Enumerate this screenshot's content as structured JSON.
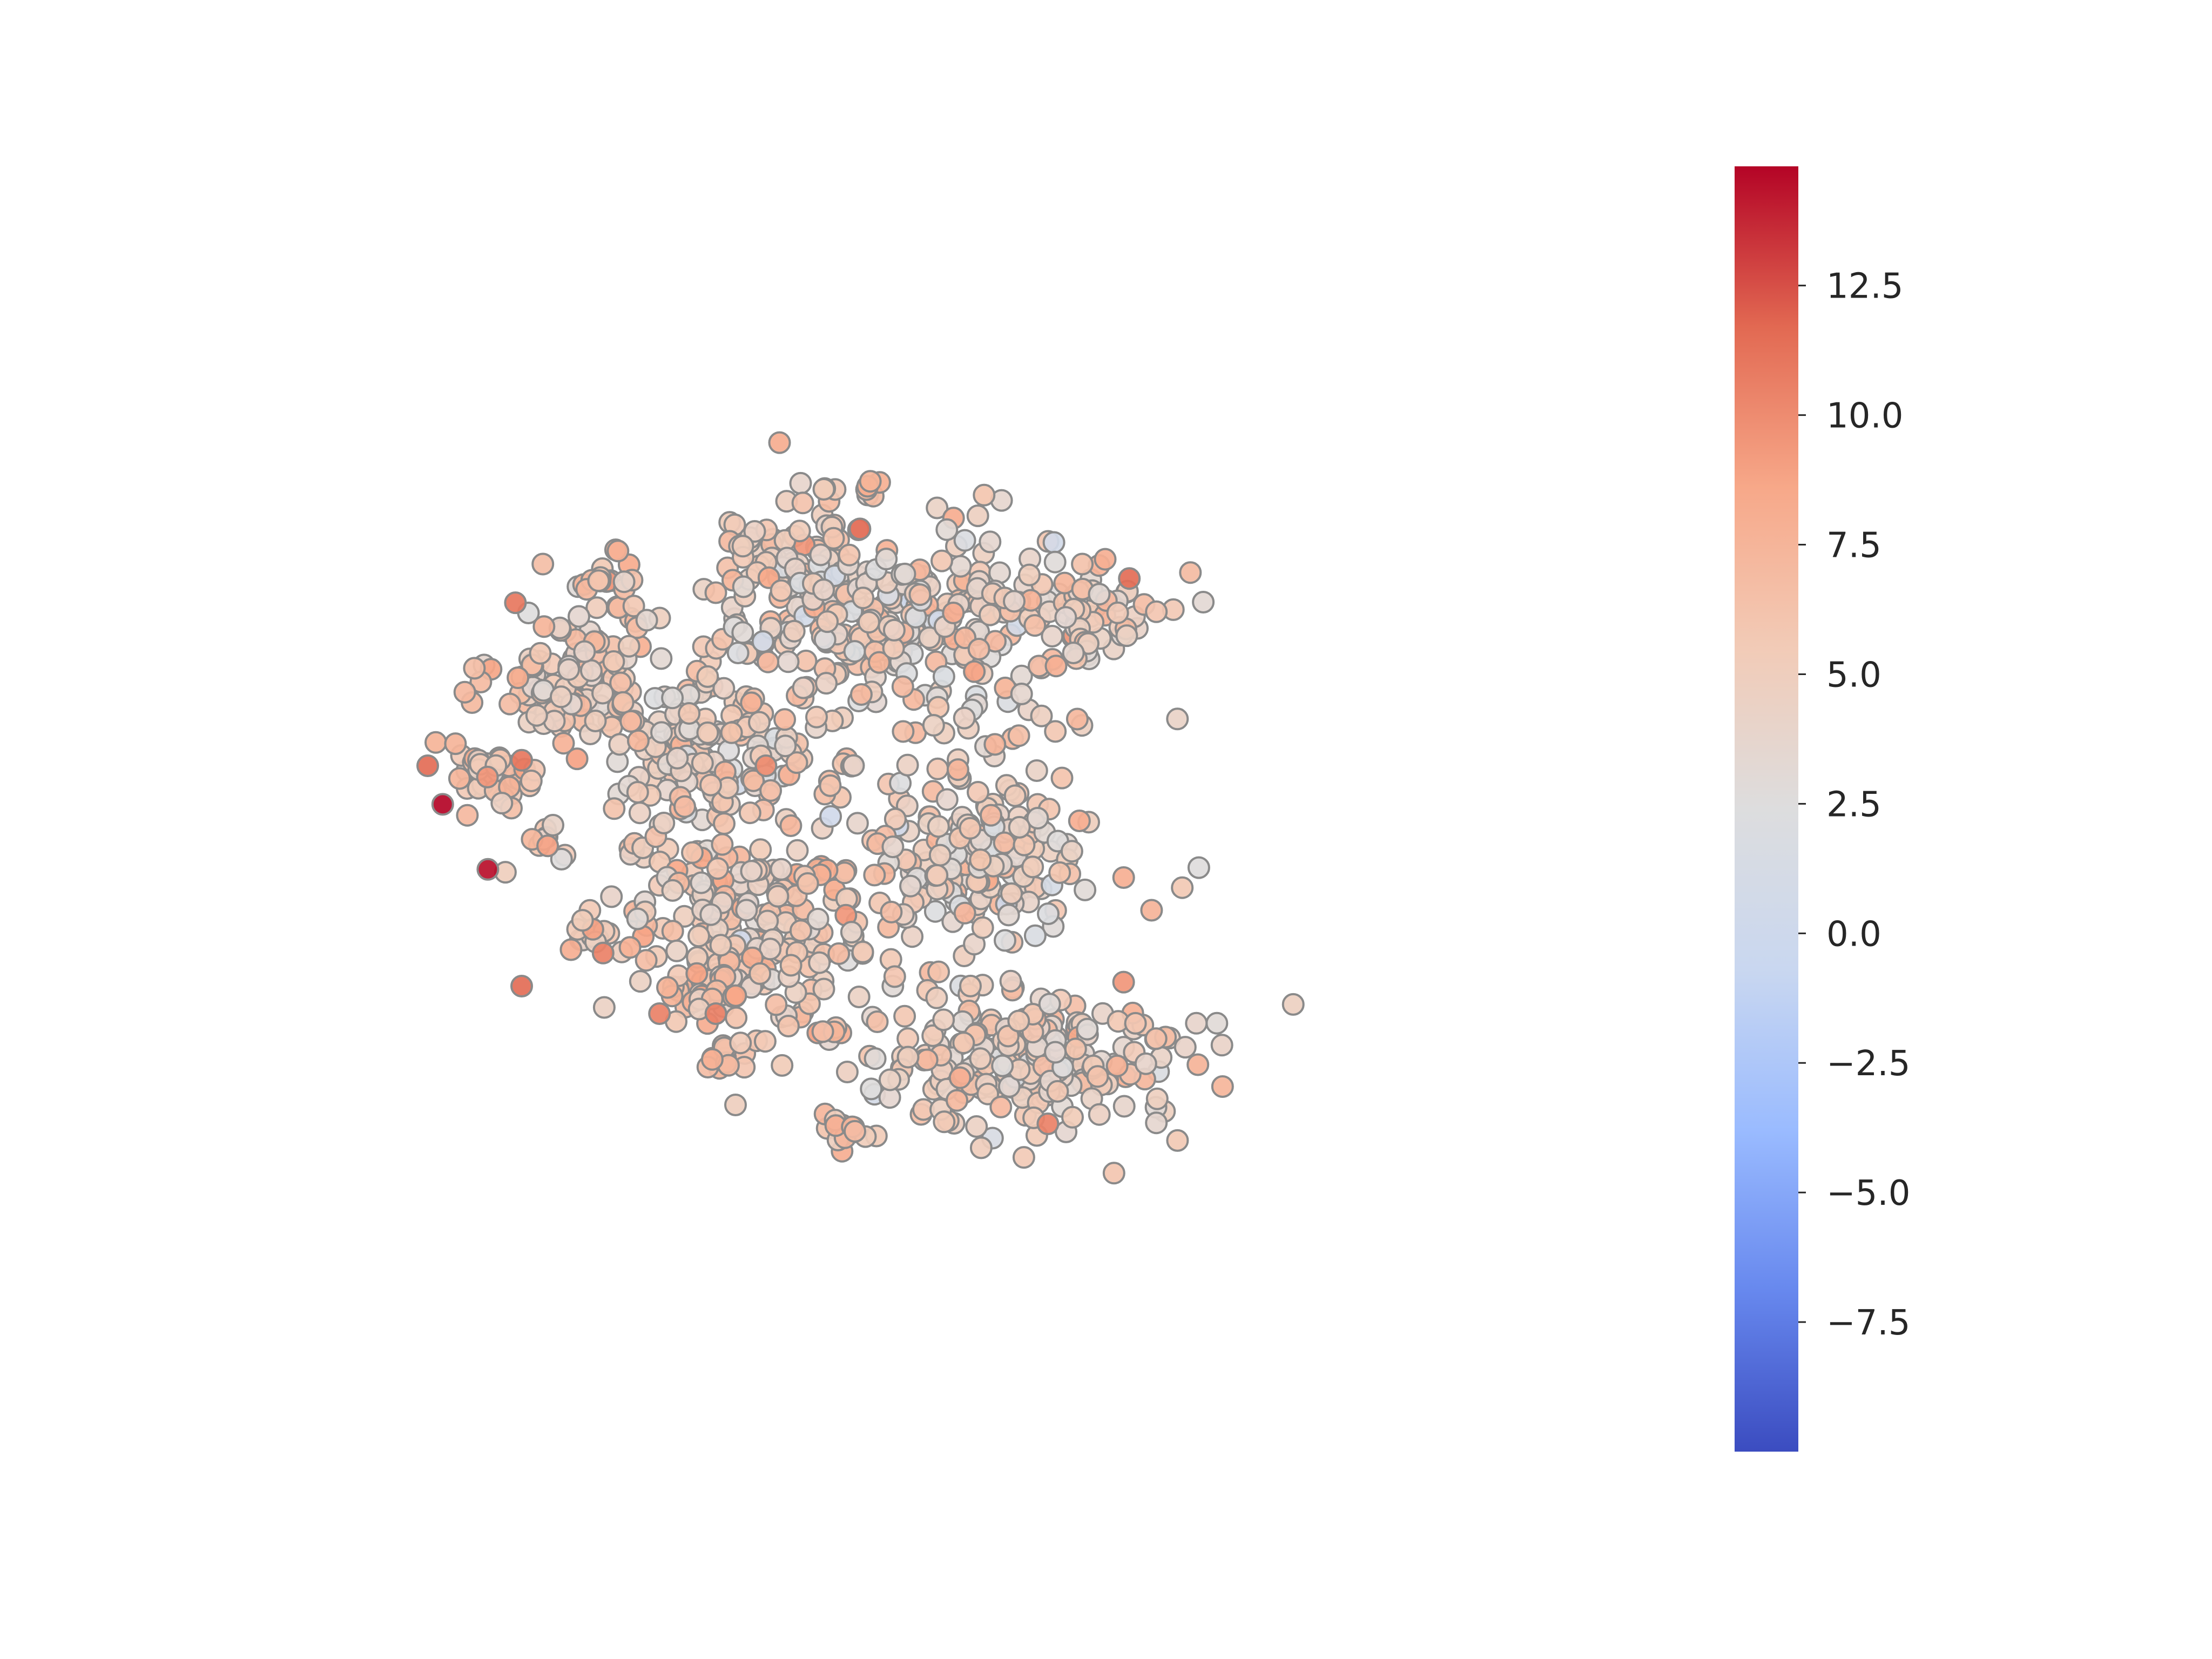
{
  "chart_data": {
    "type": "scatter",
    "title": "",
    "xlabel": "",
    "ylabel": "",
    "axes_visible": false,
    "grid": false,
    "marker": "circle",
    "marker_edge_color": "#8a8a8a",
    "colormap": {
      "name": "coolwarm",
      "range": [
        -10.0,
        14.8
      ],
      "stops": [
        "#3b4cc0",
        "#6788ee",
        "#9abbff",
        "#c9d7f0",
        "#ddddde",
        "#f2cbb7",
        "#f7a889",
        "#e26952",
        "#b40426"
      ],
      "ticks": [
        -7.5,
        -5.0,
        -2.5,
        0.0,
        2.5,
        5.0,
        7.5,
        10.0,
        12.5
      ],
      "tick_labels": [
        "−7.5",
        "−5.0",
        "−2.5",
        "0.0",
        "2.5",
        "5.0",
        "7.5",
        "10.0",
        "12.5"
      ],
      "placement": "right"
    },
    "xlim": [
      0,
      100
    ],
    "ylim": [
      0,
      100
    ],
    "clusters": [
      {
        "center": [
          15.0,
          54.0
        ],
        "spread": [
          1.8,
          1.6
        ],
        "count": 40,
        "mean": 6.2,
        "sd": 1.4
      },
      {
        "center": [
          22.0,
          63.0
        ],
        "spread": [
          3.2,
          3.2
        ],
        "count": 95,
        "mean": 5.4,
        "sd": 1.6
      },
      {
        "center": [
          25.0,
          72.0
        ],
        "spread": [
          1.2,
          1.8
        ],
        "count": 22,
        "mean": 6.5,
        "sd": 1.2
      },
      {
        "center": [
          19.5,
          48.0
        ],
        "spread": [
          1.0,
          1.0
        ],
        "count": 10,
        "mean": 6.0,
        "sd": 1.5
      },
      {
        "center": [
          23.5,
          40.0
        ],
        "spread": [
          1.2,
          1.2
        ],
        "count": 14,
        "mean": 6.5,
        "sd": 1.8
      },
      {
        "center": [
          25.5,
          47.5
        ],
        "spread": [
          0.8,
          0.8
        ],
        "count": 6,
        "mean": 6.5,
        "sd": 1.2
      },
      {
        "center": [
          32.0,
          57.0
        ],
        "spread": [
          4.2,
          4.0
        ],
        "count": 135,
        "mean": 4.8,
        "sd": 1.6
      },
      {
        "center": [
          36.0,
          40.0
        ],
        "spread": [
          4.8,
          4.2
        ],
        "count": 175,
        "mean": 5.4,
        "sd": 1.5
      },
      {
        "center": [
          32.0,
          36.0
        ],
        "spread": [
          2.2,
          2.0
        ],
        "count": 22,
        "mean": 6.5,
        "sd": 1.5
      },
      {
        "center": [
          34.0,
          29.0
        ],
        "spread": [
          1.0,
          1.0
        ],
        "count": 14,
        "mean": 7.0,
        "sd": 1.2
      },
      {
        "center": [
          38.5,
          73.5
        ],
        "spread": [
          2.8,
          4.2
        ],
        "count": 75,
        "mean": 5.2,
        "sd": 1.6
      },
      {
        "center": [
          48.0,
          68.5
        ],
        "spread": [
          5.8,
          3.8
        ],
        "count": 200,
        "mean": 4.6,
        "sd": 1.7
      },
      {
        "center": [
          62.0,
          69.5
        ],
        "spread": [
          3.8,
          2.8
        ],
        "count": 55,
        "mean": 5.5,
        "sd": 1.5
      },
      {
        "center": [
          45.0,
          80.5
        ],
        "spread": [
          0.5,
          0.6
        ],
        "count": 5,
        "mean": 8.0,
        "sd": 0.6
      },
      {
        "center": [
          54.5,
          46.5
        ],
        "spread": [
          4.0,
          3.8
        ],
        "count": 140,
        "mean": 4.6,
        "sd": 1.6
      },
      {
        "center": [
          57.0,
          28.0
        ],
        "spread": [
          7.0,
          3.8
        ],
        "count": 230,
        "mean": 5.0,
        "sd": 1.5
      },
      {
        "center": [
          42.0,
          30.5
        ],
        "spread": [
          0.6,
          0.6
        ],
        "count": 5,
        "mean": 7.0,
        "sd": 1.0
      },
      {
        "center": [
          43.0,
          21.5
        ],
        "spread": [
          1.2,
          1.2
        ],
        "count": 14,
        "mean": 6.8,
        "sd": 1.3
      },
      {
        "center": [
          41.0,
          45.0
        ],
        "spread": [
          0.9,
          0.9
        ],
        "count": 8,
        "mean": 7.0,
        "sd": 1.0
      },
      {
        "center": [
          62.5,
          65.5
        ],
        "spread": [
          0.8,
          1.0
        ],
        "count": 8,
        "mean": 4.5,
        "sd": 1.5
      },
      {
        "center": [
          45.0,
          55.0
        ],
        "spread": [
          9.5,
          9.5
        ],
        "count": 150,
        "mean": 5.5,
        "sd": 1.6
      }
    ],
    "outliers": [
      {
        "x": 11.2,
        "y": 51.5,
        "value": 14.8
      },
      {
        "x": 14.8,
        "y": 45.6,
        "value": 14.5
      },
      {
        "x": 10.0,
        "y": 55.0,
        "value": 11.5
      },
      {
        "x": 17.0,
        "y": 69.8,
        "value": 11.0
      },
      {
        "x": 17.5,
        "y": 55.5,
        "value": 11.0
      },
      {
        "x": 17.5,
        "y": 35.0,
        "value": 11.5
      },
      {
        "x": 24.0,
        "y": 38.0,
        "value": 10.5
      },
      {
        "x": 28.5,
        "y": 32.5,
        "value": 10.5
      },
      {
        "x": 33.0,
        "y": 32.5,
        "value": 10.5
      },
      {
        "x": 44.5,
        "y": 76.5,
        "value": 11.5
      },
      {
        "x": 66.0,
        "y": 72.0,
        "value": 11.5
      },
      {
        "x": 37.0,
        "y": 55.0,
        "value": 10.0
      },
      {
        "x": 59.5,
        "y": 22.5,
        "value": 10.5
      }
    ]
  }
}
